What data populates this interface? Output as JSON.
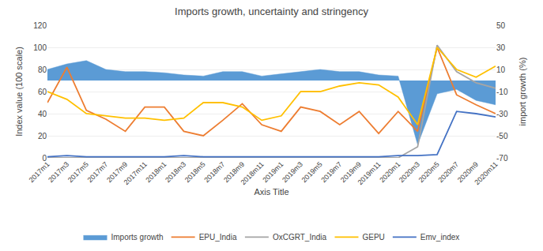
{
  "chart_data": {
    "type": "line",
    "title": "Imports growth, uncertainty and stringency",
    "xlabel": "Axis Title",
    "ylabel": "Index value (100 scale)",
    "y2label": "import growth (%)",
    "categories": [
      "2017m1",
      "2017m3",
      "2017m5",
      "2017m7",
      "2017m9",
      "2017m11",
      "2018m1",
      "2018m3",
      "2018m5",
      "2018m7",
      "2018m9",
      "2018m11",
      "2019m1",
      "2019m3",
      "2019m5",
      "2019m7",
      "2019m9",
      "2019m11",
      "2020m1",
      "2020m3",
      "2020m5",
      "2020m7",
      "2020m9",
      "2020m11"
    ],
    "series": [
      {
        "name": "Imports growth",
        "type": "area",
        "axis": "y2",
        "color": "#5b9bd5",
        "values": [
          10,
          15,
          18,
          10,
          8,
          8,
          7,
          5,
          4,
          8,
          8,
          4,
          6,
          8,
          10,
          8,
          8,
          5,
          4,
          -58,
          -12,
          -8,
          -18,
          -22
        ]
      },
      {
        "name": "EPU_India",
        "type": "line",
        "color": "#ed7d31",
        "values": [
          50,
          82,
          43,
          35,
          24,
          46,
          46,
          24,
          20,
          34,
          49,
          30,
          24,
          46,
          42,
          30,
          42,
          22,
          42,
          24,
          100,
          57,
          48,
          40
        ]
      },
      {
        "name": "OxCGRT_India",
        "type": "line",
        "color": "#a5a5a5",
        "values": [
          0,
          0,
          0,
          0,
          0,
          0,
          0,
          0,
          0,
          0,
          0,
          0,
          0,
          0,
          0,
          0,
          0,
          0,
          0,
          10,
          102,
          78,
          68,
          63
        ]
      },
      {
        "name": "GEPU",
        "type": "line",
        "color": "#ffc000",
        "values": [
          60,
          53,
          40,
          38,
          36,
          36,
          34,
          36,
          50,
          50,
          46,
          34,
          38,
          60,
          60,
          65,
          68,
          66,
          55,
          30,
          100,
          80,
          73,
          83
        ]
      },
      {
        "name": "Emv_index",
        "type": "line",
        "color": "#4472c4",
        "values": [
          1,
          2,
          1,
          1,
          1,
          1,
          1,
          2,
          1,
          1,
          1,
          1,
          1,
          1,
          1,
          1,
          1,
          1,
          2,
          2,
          3,
          42,
          40,
          37
        ]
      }
    ],
    "ylim": [
      0,
      120
    ],
    "yticks": [
      0,
      20,
      40,
      60,
      80,
      100,
      120
    ],
    "y2lim": [
      -70,
      50
    ],
    "y2ticks": [
      -70,
      -50,
      -30,
      -10,
      10,
      30,
      50
    ],
    "grid": true,
    "legend": "bottom"
  }
}
